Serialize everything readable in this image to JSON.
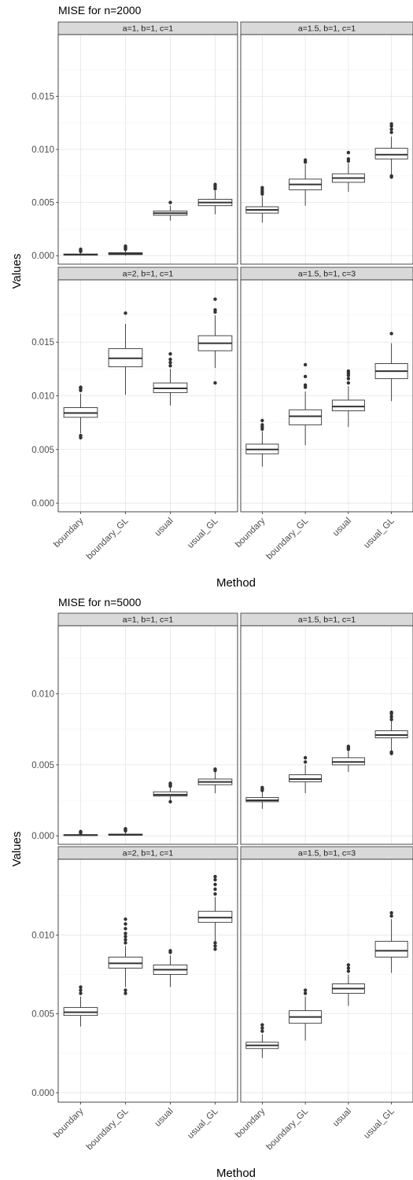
{
  "chart_data": [
    {
      "type": "boxplot",
      "title": "MISE for n=2000",
      "xlabel": "Method",
      "ylabel": "Values",
      "categories": [
        "boundary",
        "boundary_GL",
        "usual",
        "usual_GL"
      ],
      "ylim": [
        -0.0008,
        0.0208
      ],
      "yticks": [
        0.0,
        0.005,
        0.01,
        0.015
      ],
      "ytick_labels": [
        "0.000",
        "0.005",
        "0.010",
        "0.015"
      ],
      "grid": true,
      "panels": [
        {
          "strip": "a=1, b=1, c=1",
          "boxes": [
            {
              "lower": 0.0,
              "q1": 5e-05,
              "median": 0.0001,
              "q3": 0.00015,
              "upper": 0.0003,
              "outliers": [
                0.0004,
                0.0005,
                0.0006
              ]
            },
            {
              "lower": 0.0,
              "q1": 0.0001,
              "median": 0.00018,
              "q3": 0.00028,
              "upper": 0.0005,
              "outliers": [
                0.0006,
                0.0007,
                0.0008,
                0.0009
              ]
            },
            {
              "lower": 0.0033,
              "q1": 0.0038,
              "median": 0.004,
              "q3": 0.0042,
              "upper": 0.0047,
              "outliers": [
                0.005
              ]
            },
            {
              "lower": 0.0039,
              "q1": 0.0047,
              "median": 0.005,
              "q3": 0.0053,
              "upper": 0.0061,
              "outliers": [
                0.0063,
                0.0065,
                0.0067
              ]
            }
          ]
        },
        {
          "strip": "a=1.5, b=1, c=1",
          "boxes": [
            {
              "lower": 0.0031,
              "q1": 0.004,
              "median": 0.0043,
              "q3": 0.0046,
              "upper": 0.0056,
              "outliers": [
                0.0058,
                0.006,
                0.0062,
                0.0064
              ]
            },
            {
              "lower": 0.0047,
              "q1": 0.0062,
              "median": 0.0067,
              "q3": 0.0072,
              "upper": 0.0086,
              "outliers": [
                0.0088,
                0.009
              ]
            },
            {
              "lower": 0.006,
              "q1": 0.0069,
              "median": 0.0073,
              "q3": 0.0077,
              "upper": 0.0087,
              "outliers": [
                0.0089,
                0.0091,
                0.0097
              ]
            },
            {
              "lower": 0.0076,
              "q1": 0.0091,
              "median": 0.0095,
              "q3": 0.0101,
              "upper": 0.0112,
              "outliers": [
                0.0074,
                0.0075,
                0.0116,
                0.0119,
                0.0122,
                0.0124
              ]
            }
          ]
        },
        {
          "strip": "a=2, b=1, c=1",
          "boxes": [
            {
              "lower": 0.0065,
              "q1": 0.008,
              "median": 0.0084,
              "q3": 0.0089,
              "upper": 0.0102,
              "outliers": [
                0.0061,
                0.0063,
                0.0105,
                0.0107,
                0.0108
              ]
            },
            {
              "lower": 0.0101,
              "q1": 0.0127,
              "median": 0.0135,
              "q3": 0.0144,
              "upper": 0.0167,
              "outliers": [
                0.0177
              ]
            },
            {
              "lower": 0.0091,
              "q1": 0.0103,
              "median": 0.0107,
              "q3": 0.0112,
              "upper": 0.0125,
              "outliers": [
                0.0128,
                0.0131,
                0.0134,
                0.0139
              ]
            },
            {
              "lower": 0.0126,
              "q1": 0.0142,
              "median": 0.0149,
              "q3": 0.0156,
              "upper": 0.0175,
              "outliers": [
                0.0112,
                0.0178,
                0.018,
                0.019
              ]
            }
          ]
        },
        {
          "strip": "a=1.5, b=1, c=3",
          "boxes": [
            {
              "lower": 0.0034,
              "q1": 0.0046,
              "median": 0.005,
              "q3": 0.0055,
              "upper": 0.0067,
              "outliers": [
                0.0069,
                0.0071,
                0.0073,
                0.0077
              ]
            },
            {
              "lower": 0.0054,
              "q1": 0.0073,
              "median": 0.0081,
              "q3": 0.0087,
              "upper": 0.0104,
              "outliers": [
                0.0108,
                0.011,
                0.0118,
                0.0129
              ]
            },
            {
              "lower": 0.0071,
              "q1": 0.0086,
              "median": 0.009,
              "q3": 0.0096,
              "upper": 0.0109,
              "outliers": [
                0.0112,
                0.0116,
                0.0119,
                0.0121,
                0.0123
              ]
            },
            {
              "lower": 0.0095,
              "q1": 0.0116,
              "median": 0.0123,
              "q3": 0.013,
              "upper": 0.0149,
              "outliers": [
                0.0158
              ]
            }
          ]
        }
      ]
    },
    {
      "type": "boxplot",
      "title": "MISE for n=5000",
      "xlabel": "Method",
      "ylabel": "Values",
      "categories": [
        "boundary",
        "boundary_GL",
        "usual",
        "usual_GL"
      ],
      "ylim": [
        -0.0006,
        0.0148
      ],
      "yticks": [
        0.0,
        0.005,
        0.01
      ],
      "ytick_labels": [
        "0.000",
        "0.005",
        "0.010"
      ],
      "grid": true,
      "panels": [
        {
          "strip": "a=1, b=1, c=1",
          "boxes": [
            {
              "lower": 0.0,
              "q1": 2e-05,
              "median": 5e-05,
              "q3": 8e-05,
              "upper": 0.00015,
              "outliers": [
                0.0002,
                0.00025,
                0.0003
              ]
            },
            {
              "lower": 0.0,
              "q1": 4e-05,
              "median": 8e-05,
              "q3": 0.00012,
              "upper": 0.0003,
              "outliers": [
                0.00035,
                0.0004,
                0.00045,
                0.0005
              ]
            },
            {
              "lower": 0.0025,
              "q1": 0.0028,
              "median": 0.0029,
              "q3": 0.0031,
              "upper": 0.0034,
              "outliers": [
                0.0024,
                0.0035,
                0.0036,
                0.0037
              ]
            },
            {
              "lower": 0.003,
              "q1": 0.0036,
              "median": 0.0038,
              "q3": 0.004,
              "upper": 0.0045,
              "outliers": [
                0.0046,
                0.0047
              ]
            }
          ]
        },
        {
          "strip": "a=1.5, b=1, c=1",
          "boxes": [
            {
              "lower": 0.0019,
              "q1": 0.0024,
              "median": 0.0025,
              "q3": 0.0027,
              "upper": 0.0031,
              "outliers": [
                0.0032,
                0.0033,
                0.0034
              ]
            },
            {
              "lower": 0.003,
              "q1": 0.0038,
              "median": 0.004,
              "q3": 0.0043,
              "upper": 0.005,
              "outliers": [
                0.0052,
                0.0055
              ]
            },
            {
              "lower": 0.0045,
              "q1": 0.005,
              "median": 0.0052,
              "q3": 0.0055,
              "upper": 0.006,
              "outliers": [
                0.0061,
                0.0062,
                0.0063
              ]
            },
            {
              "lower": 0.006,
              "q1": 0.0069,
              "median": 0.0071,
              "q3": 0.0074,
              "upper": 0.0081,
              "outliers": [
                0.0058,
                0.0059,
                0.0082,
                0.0084,
                0.0086,
                0.0087
              ]
            }
          ]
        },
        {
          "strip": "a=2, b=1, c=1",
          "boxes": [
            {
              "lower": 0.0042,
              "q1": 0.0049,
              "median": 0.0051,
              "q3": 0.0054,
              "upper": 0.0061,
              "outliers": [
                0.0063,
                0.0065,
                0.0067
              ]
            },
            {
              "lower": 0.0067,
              "q1": 0.0079,
              "median": 0.0082,
              "q3": 0.0086,
              "upper": 0.0093,
              "outliers": [
                0.0063,
                0.0065,
                0.0095,
                0.0097,
                0.0099,
                0.0101,
                0.0104,
                0.0107,
                0.011
              ]
            },
            {
              "lower": 0.0067,
              "q1": 0.0075,
              "median": 0.0078,
              "q3": 0.0081,
              "upper": 0.0087,
              "outliers": [
                0.0089,
                0.009
              ]
            },
            {
              "lower": 0.0095,
              "q1": 0.0108,
              "median": 0.0111,
              "q3": 0.0115,
              "upper": 0.0124,
              "outliers": [
                0.0091,
                0.0093,
                0.0095,
                0.0126,
                0.0129,
                0.0132,
                0.0135,
                0.0137
              ]
            }
          ]
        },
        {
          "strip": "a=1.5, b=1, c=3",
          "boxes": [
            {
              "lower": 0.0022,
              "q1": 0.0028,
              "median": 0.003,
              "q3": 0.0032,
              "upper": 0.0037,
              "outliers": [
                0.0039,
                0.0041,
                0.0043
              ]
            },
            {
              "lower": 0.0033,
              "q1": 0.0044,
              "median": 0.0048,
              "q3": 0.0052,
              "upper": 0.0061,
              "outliers": [
                0.0063,
                0.0065
              ]
            },
            {
              "lower": 0.0055,
              "q1": 0.0063,
              "median": 0.0066,
              "q3": 0.0069,
              "upper": 0.0075,
              "outliers": [
                0.0077,
                0.0079,
                0.0081
              ]
            },
            {
              "lower": 0.0076,
              "q1": 0.0086,
              "median": 0.009,
              "q3": 0.0096,
              "upper": 0.011,
              "outliers": [
                0.0112,
                0.0114
              ]
            }
          ]
        }
      ]
    }
  ]
}
